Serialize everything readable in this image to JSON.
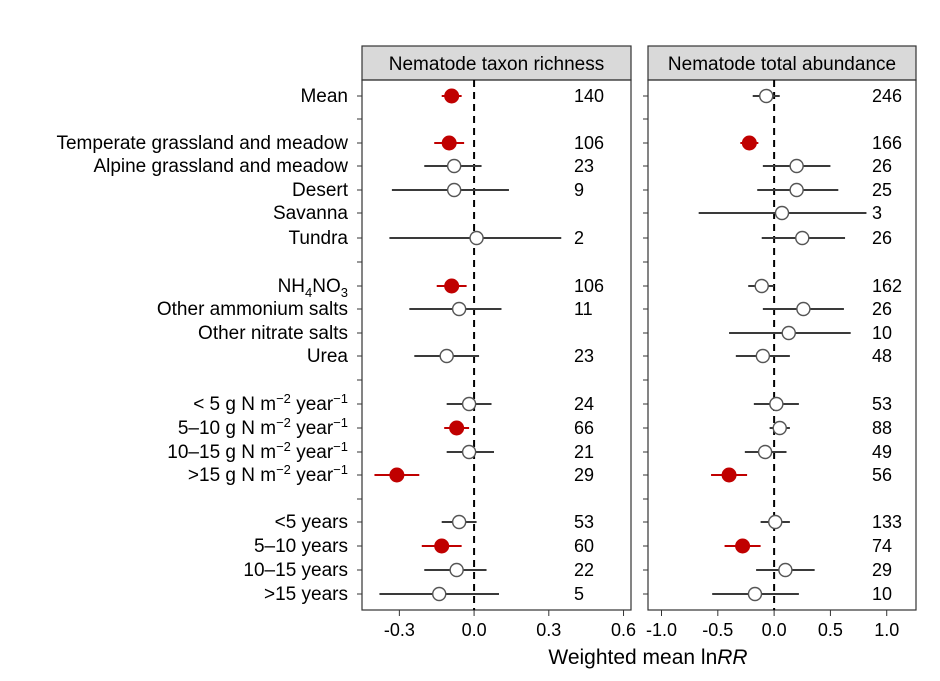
{
  "chart_data": {
    "type": "forest",
    "xlabel": "Weighted mean lnRR",
    "groups": [
      [
        "Mean"
      ],
      [
        "Temperate grassland and meadow",
        "Alpine grassland and meadow",
        "Desert",
        "Savanna",
        "Tundra"
      ],
      [
        "NH4NO3",
        "Other ammonium salts",
        "Other nitrate salts",
        "Urea"
      ],
      [
        "< 5 g N m−2 year−1",
        "5–10 g N m−2 year−1",
        "10–15 g N m−2 year−1",
        ">15 g N m−2 year−1"
      ],
      [
        "<5 years",
        "5–10 years",
        "10–15 years",
        ">15 years"
      ]
    ],
    "rows": [
      {
        "label": "Mean",
        "label_main": "Mean",
        "label_sub": "",
        "label_post": "",
        "sup": ""
      },
      {
        "label": "Temperate grassland and meadow",
        "label_main": "Temperate grassland and meadow",
        "label_sub": "",
        "label_post": "",
        "sup": ""
      },
      {
        "label": "Alpine grassland and meadow",
        "label_main": "Alpine grassland and meadow",
        "label_sub": "",
        "label_post": "",
        "sup": ""
      },
      {
        "label": "Desert",
        "label_main": "Desert",
        "label_sub": "",
        "label_post": "",
        "sup": ""
      },
      {
        "label": "Savanna",
        "label_main": "Savanna",
        "label_sub": "",
        "label_post": "",
        "sup": ""
      },
      {
        "label": "Tundra",
        "label_main": "Tundra",
        "label_sub": "",
        "label_post": "",
        "sup": ""
      },
      {
        "label": "NH4NO3",
        "label_main": "NH",
        "label_sub": "4",
        "label_post": "NO",
        "sub2": "3",
        "sup": ""
      },
      {
        "label": "Other ammonium salts",
        "label_main": "Other ammonium salts",
        "label_sub": "",
        "label_post": "",
        "sup": ""
      },
      {
        "label": "Other nitrate salts",
        "label_main": "Other nitrate salts",
        "label_sub": "",
        "label_post": "",
        "sup": ""
      },
      {
        "label": "Urea",
        "label_main": "Urea",
        "label_sub": "",
        "label_post": "",
        "sup": ""
      },
      {
        "label": "< 5 g N m−2 year−1",
        "label_main": "< 5 g N m",
        "sup1": "−2",
        "mid": " year",
        "sup2": "−1"
      },
      {
        "label": "5–10 g N m−2 year−1",
        "label_main": "5–10 g N m",
        "sup1": "−2",
        "mid": " year",
        "sup2": "−1"
      },
      {
        "label": "10–15 g N m−2 year−1",
        "label_main": "10–15 g N m",
        "sup1": "−2",
        "mid": " year",
        "sup2": "−1"
      },
      {
        "label": ">15 g N m−2 year−1",
        "label_main": ">15 g N m",
        "sup1": "−2",
        "mid": " year",
        "sup2": "−1"
      },
      {
        "label": "<5 years",
        "label_main": "<5 years",
        "label_sub": "",
        "label_post": "",
        "sup": ""
      },
      {
        "label": "5–10 years",
        "label_main": "5–10 years",
        "label_sub": "",
        "label_post": "",
        "sup": ""
      },
      {
        "label": "10–15 years",
        "label_main": "10–15 years",
        "label_sub": "",
        "label_post": "",
        "sup": ""
      },
      {
        "label": ">15 years",
        "label_main": ">15 years",
        "label_sub": "",
        "label_post": "",
        "sup": ""
      }
    ],
    "panels": [
      {
        "title": "Nematode taxon richness",
        "xlim": [
          -0.45,
          0.63
        ],
        "xticks": [
          -0.3,
          0.0,
          0.3,
          0.6
        ],
        "xtick_labels": [
          "-0.3",
          "0.0",
          "0.3",
          "0.6"
        ],
        "points": [
          {
            "mean": -0.09,
            "lo": -0.13,
            "hi": -0.05,
            "n": "140",
            "significant": true
          },
          {
            "mean": -0.1,
            "lo": -0.16,
            "hi": -0.04,
            "n": "106",
            "significant": true
          },
          {
            "mean": -0.08,
            "lo": -0.2,
            "hi": 0.03,
            "n": "23",
            "significant": false
          },
          {
            "mean": -0.08,
            "lo": -0.33,
            "hi": 0.14,
            "n": "9",
            "significant": false
          },
          {
            "mean": null,
            "lo": null,
            "hi": null,
            "n": "",
            "significant": false
          },
          {
            "mean": 0.01,
            "lo": -0.34,
            "hi": 0.35,
            "n": "2",
            "significant": false
          },
          {
            "mean": -0.09,
            "lo": -0.15,
            "hi": -0.03,
            "n": "106",
            "significant": true
          },
          {
            "mean": -0.06,
            "lo": -0.26,
            "hi": 0.11,
            "n": "11",
            "significant": false
          },
          {
            "mean": null,
            "lo": null,
            "hi": null,
            "n": "",
            "significant": false
          },
          {
            "mean": -0.11,
            "lo": -0.24,
            "hi": 0.02,
            "n": "23",
            "significant": false
          },
          {
            "mean": -0.02,
            "lo": -0.11,
            "hi": 0.07,
            "n": "24",
            "significant": false
          },
          {
            "mean": -0.07,
            "lo": -0.12,
            "hi": -0.02,
            "n": "66",
            "significant": true
          },
          {
            "mean": -0.02,
            "lo": -0.11,
            "hi": 0.08,
            "n": "21",
            "significant": false
          },
          {
            "mean": -0.31,
            "lo": -0.4,
            "hi": -0.22,
            "n": "29",
            "significant": true
          },
          {
            "mean": -0.06,
            "lo": -0.13,
            "hi": 0.01,
            "n": "53",
            "significant": false
          },
          {
            "mean": -0.13,
            "lo": -0.21,
            "hi": -0.05,
            "n": "60",
            "significant": true
          },
          {
            "mean": -0.07,
            "lo": -0.2,
            "hi": 0.05,
            "n": "22",
            "significant": false
          },
          {
            "mean": -0.14,
            "lo": -0.38,
            "hi": 0.1,
            "n": "5",
            "significant": false
          }
        ]
      },
      {
        "title": "Nematode total abundance",
        "xlim": [
          -1.12,
          1.26
        ],
        "xticks": [
          -1.0,
          -0.5,
          0.0,
          0.5,
          1.0
        ],
        "xtick_labels": [
          "-1.0",
          "-0.5",
          "0.0",
          "0.5",
          "1.0"
        ],
        "points": [
          {
            "mean": -0.07,
            "lo": -0.19,
            "hi": 0.05,
            "n": "246",
            "significant": false
          },
          {
            "mean": -0.22,
            "lo": -0.3,
            "hi": -0.14,
            "n": "166",
            "significant": true
          },
          {
            "mean": 0.2,
            "lo": -0.1,
            "hi": 0.5,
            "n": "26",
            "significant": false
          },
          {
            "mean": 0.2,
            "lo": -0.15,
            "hi": 0.57,
            "n": "25",
            "significant": false
          },
          {
            "mean": 0.07,
            "lo": -0.67,
            "hi": 0.82,
            "n": "3",
            "significant": false
          },
          {
            "mean": 0.25,
            "lo": -0.11,
            "hi": 0.63,
            "n": "26",
            "significant": false
          },
          {
            "mean": -0.11,
            "lo": -0.23,
            "hi": 0.0,
            "n": "162",
            "significant": false
          },
          {
            "mean": 0.26,
            "lo": -0.1,
            "hi": 0.62,
            "n": "26",
            "significant": false
          },
          {
            "mean": 0.13,
            "lo": -0.4,
            "hi": 0.68,
            "n": "10",
            "significant": false
          },
          {
            "mean": -0.1,
            "lo": -0.34,
            "hi": 0.14,
            "n": "48",
            "significant": false
          },
          {
            "mean": 0.02,
            "lo": -0.18,
            "hi": 0.22,
            "n": "53",
            "significant": false
          },
          {
            "mean": 0.05,
            "lo": -0.04,
            "hi": 0.14,
            "n": "88",
            "significant": false
          },
          {
            "mean": -0.08,
            "lo": -0.26,
            "hi": 0.11,
            "n": "49",
            "significant": false
          },
          {
            "mean": -0.4,
            "lo": -0.56,
            "hi": -0.24,
            "n": "56",
            "significant": true
          },
          {
            "mean": 0.01,
            "lo": -0.12,
            "hi": 0.14,
            "n": "133",
            "significant": false
          },
          {
            "mean": -0.28,
            "lo": -0.44,
            "hi": -0.12,
            "n": "74",
            "significant": true
          },
          {
            "mean": 0.1,
            "lo": -0.16,
            "hi": 0.36,
            "n": "29",
            "significant": false
          },
          {
            "mean": -0.17,
            "lo": -0.55,
            "hi": 0.22,
            "n": "10",
            "significant": false
          }
        ]
      }
    ],
    "colors": {
      "significant": "#c00000",
      "nonsignificant": "#555555",
      "strip_fill": "#d9d9d9",
      "line": "#333333"
    },
    "reference_line": 0
  }
}
